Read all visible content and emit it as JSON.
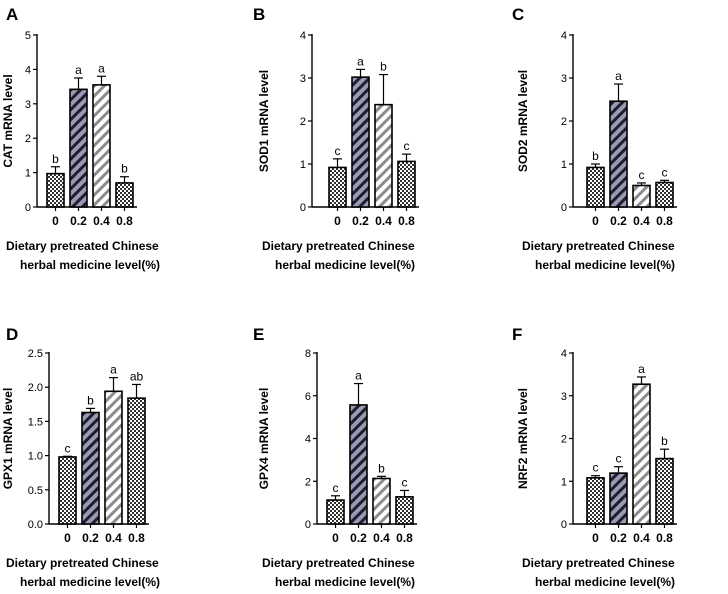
{
  "chart_data": [
    {
      "panel": "A",
      "type": "bar",
      "ylabel": "CAT mRNA level",
      "xlabel_lines": [
        "Dietary pretreated Chinese",
        "herbal medicine level(%)"
      ],
      "categories": [
        "0",
        "0.2",
        "0.4",
        "0.8"
      ],
      "values": [
        0.97,
        3.42,
        3.55,
        0.7
      ],
      "errors": [
        0.2,
        0.33,
        0.25,
        0.18
      ],
      "letters": [
        "b",
        "a",
        "a",
        "b"
      ],
      "ylim": [
        0,
        5
      ],
      "yticks": [
        "0",
        "1",
        "2",
        "3",
        "4",
        "5"
      ]
    },
    {
      "panel": "B",
      "type": "bar",
      "ylabel": "SOD1 mRNA level",
      "xlabel_lines": [
        "Dietary pretreated Chinese",
        "herbal medicine level(%)"
      ],
      "categories": [
        "0",
        "0.2",
        "0.4",
        "0.8"
      ],
      "values": [
        0.92,
        3.02,
        2.38,
        1.06
      ],
      "errors": [
        0.2,
        0.18,
        0.7,
        0.17
      ],
      "letters": [
        "c",
        "a",
        "b",
        "c"
      ],
      "ylim": [
        0,
        4
      ],
      "yticks": [
        "0",
        "1",
        "2",
        "3",
        "4"
      ]
    },
    {
      "panel": "C",
      "type": "bar",
      "ylabel": "SOD2 mRNA level",
      "xlabel_lines": [
        "Dietary pretreated Chinese",
        "herbal medicine level(%)"
      ],
      "categories": [
        "0",
        "0.2",
        "0.4",
        "0.8"
      ],
      "values": [
        0.92,
        2.46,
        0.5,
        0.57
      ],
      "errors": [
        0.08,
        0.4,
        0.06,
        0.05
      ],
      "letters": [
        "b",
        "a",
        "c",
        "c"
      ],
      "ylim": [
        0,
        4
      ],
      "yticks": [
        "0",
        "1",
        "2",
        "3",
        "4"
      ]
    },
    {
      "panel": "D",
      "type": "bar",
      "ylabel": "GPX1 mRNA level",
      "xlabel_lines": [
        "Dietary pretreated Chinese",
        "herbal medicine level(%)"
      ],
      "categories": [
        "0",
        "0.2",
        "0.4",
        "0.8"
      ],
      "values": [
        0.98,
        1.63,
        1.94,
        1.84
      ],
      "errors": [
        0.01,
        0.06,
        0.2,
        0.2
      ],
      "letters": [
        "c",
        "b",
        "a",
        "ab"
      ],
      "ylim": [
        0,
        2.5
      ],
      "yticks": [
        "0.0",
        "0.5",
        "1.0",
        "1.5",
        "2.0",
        "2.5"
      ]
    },
    {
      "panel": "E",
      "type": "bar",
      "ylabel": "GPX4 mRNA level",
      "xlabel_lines": [
        "Dietary pretreated Chinese",
        "herbal medicine level(%)"
      ],
      "categories": [
        "0",
        "0.2",
        "0.4",
        "0.8"
      ],
      "values": [
        1.12,
        5.57,
        2.13,
        1.27
      ],
      "errors": [
        0.2,
        1.0,
        0.1,
        0.3
      ],
      "letters": [
        "c",
        "a",
        "b",
        "c"
      ],
      "ylim": [
        0,
        8
      ],
      "yticks": [
        "0",
        "2",
        "4",
        "6",
        "8"
      ]
    },
    {
      "panel": "F",
      "type": "bar",
      "ylabel": "NRF2 mRNA level",
      "xlabel_lines": [
        "Dietary pretreated Chinese",
        "herbal medicine level(%)"
      ],
      "categories": [
        "0",
        "0.2",
        "0.4",
        "0.8"
      ],
      "values": [
        1.08,
        1.19,
        3.27,
        1.53
      ],
      "errors": [
        0.05,
        0.15,
        0.17,
        0.22
      ],
      "letters": [
        "c",
        "c",
        "a",
        "b"
      ],
      "ylim": [
        0,
        4
      ],
      "yticks": [
        "0",
        "1",
        "2",
        "3",
        "4"
      ]
    }
  ],
  "patterns": [
    "checker",
    "dark-hatch",
    "light-hatch",
    "checker"
  ]
}
